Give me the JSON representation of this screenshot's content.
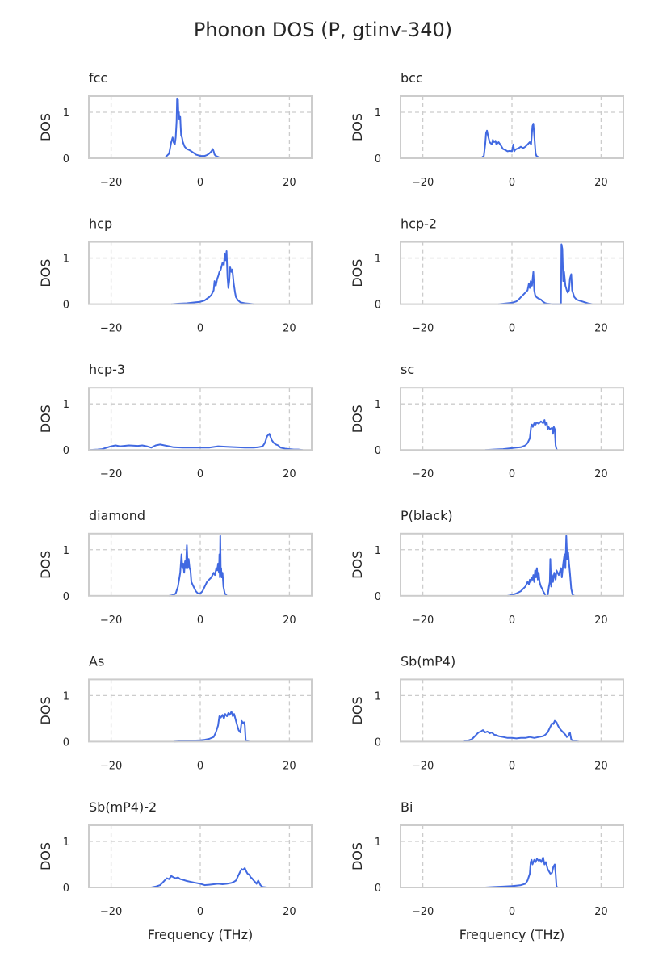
{
  "figure": {
    "title": "Phonon DOS (P, gtinv-340)",
    "xlabel": "Frequency (THz)",
    "ylabel": "DOS"
  },
  "colors": {
    "line": "#4169e1",
    "grid": "#cccccc",
    "frame": "#cccccc",
    "text": "#262626"
  },
  "chart_data": [
    {
      "type": "line",
      "title": "fcc",
      "xlim": [
        -25,
        25
      ],
      "ylim": [
        0,
        1.35
      ],
      "xticks": [
        -20,
        0,
        20
      ],
      "yticks": [
        0,
        1
      ],
      "grid": true,
      "x": [
        -8,
        -7.5,
        -7,
        -6.5,
        -6.2,
        -6,
        -5.7,
        -5.5,
        -5.3,
        -5.2,
        -5.1,
        -5,
        -4.9,
        -4.8,
        -4.7,
        -4.5,
        -4.4,
        -4.3,
        -4.1,
        -3.9,
        -3.5,
        -3,
        -2.5,
        -2,
        -1.5,
        -1,
        0,
        1,
        1.5,
        2,
        2.5,
        2.8,
        3,
        3.2,
        3.5,
        4,
        4.5,
        5
      ],
      "y": [
        0,
        0.05,
        0.1,
        0.35,
        0.45,
        0.35,
        0.3,
        0.45,
        0.8,
        1.3,
        1.25,
        1.28,
        0.95,
        1.0,
        0.85,
        0.9,
        0.7,
        0.5,
        0.45,
        0.35,
        0.25,
        0.2,
        0.18,
        0.15,
        0.12,
        0.08,
        0.05,
        0.05,
        0.07,
        0.1,
        0.15,
        0.2,
        0.15,
        0.08,
        0.05,
        0.03,
        0.01,
        0
      ]
    },
    {
      "type": "line",
      "title": "bcc",
      "xlim": [
        -25,
        25
      ],
      "ylim": [
        0,
        1.35
      ],
      "xticks": [
        -20,
        0,
        20
      ],
      "yticks": [
        0,
        1
      ],
      "grid": true,
      "x": [
        -7,
        -6.3,
        -6,
        -5.8,
        -5.6,
        -5.4,
        -5,
        -4.5,
        -4.3,
        -4,
        -3.7,
        -3.5,
        -3,
        -2.5,
        -2,
        -1.5,
        -1,
        -0.5,
        0,
        0.3,
        0.5,
        0.7,
        1,
        1.5,
        2,
        2.5,
        3,
        3.5,
        4,
        4.3,
        4.6,
        4.8,
        5,
        5.3,
        5.5,
        6,
        6.5,
        7
      ],
      "y": [
        0,
        0.05,
        0.3,
        0.55,
        0.6,
        0.5,
        0.35,
        0.3,
        0.4,
        0.35,
        0.38,
        0.3,
        0.35,
        0.28,
        0.2,
        0.18,
        0.15,
        0.16,
        0.15,
        0.3,
        0.15,
        0.18,
        0.2,
        0.22,
        0.25,
        0.22,
        0.25,
        0.3,
        0.35,
        0.3,
        0.7,
        0.75,
        0.5,
        0.1,
        0.05,
        0.02,
        0.01,
        0
      ]
    },
    {
      "type": "line",
      "title": "hcp",
      "xlim": [
        -25,
        25
      ],
      "ylim": [
        0,
        1.35
      ],
      "xticks": [
        -20,
        0,
        20
      ],
      "yticks": [
        0,
        1
      ],
      "grid": true,
      "x": [
        -6.5,
        -5,
        -3,
        -1,
        0,
        1,
        1.5,
        2,
        2.5,
        3,
        3.2,
        3.5,
        3.8,
        4,
        4.3,
        4.6,
        5,
        5.3,
        5.5,
        5.7,
        5.9,
        6.1,
        6.3,
        6.5,
        6.7,
        7,
        7.2,
        7.5,
        7.8,
        8,
        8.5,
        9,
        10,
        11,
        12
      ],
      "y": [
        0,
        0.01,
        0.02,
        0.04,
        0.05,
        0.08,
        0.12,
        0.15,
        0.2,
        0.3,
        0.5,
        0.4,
        0.55,
        0.6,
        0.7,
        0.75,
        0.9,
        0.85,
        1.1,
        0.95,
        1.15,
        0.6,
        0.35,
        0.5,
        0.8,
        0.7,
        0.75,
        0.45,
        0.25,
        0.15,
        0.08,
        0.04,
        0.02,
        0.01,
        0
      ]
    },
    {
      "type": "line",
      "title": "hcp-2",
      "xlim": [
        -25,
        25
      ],
      "ylim": [
        0,
        1.35
      ],
      "xticks": [
        -20,
        0,
        20
      ],
      "yticks": [
        0,
        1
      ],
      "grid": true,
      "x": [
        -3,
        -1,
        0,
        1,
        1.5,
        2,
        2.5,
        3,
        3.5,
        3.8,
        4,
        4.2,
        4.5,
        4.8,
        5,
        5.2,
        5.5,
        6,
        6.5,
        7,
        7.5,
        8,
        9,
        10,
        11,
        11.1,
        11.3,
        11.5,
        11.7,
        12,
        12.3,
        12.5,
        12.8,
        13,
        13.3,
        13.5,
        14,
        14.5,
        15,
        16,
        17,
        18
      ],
      "y": [
        0,
        0.02,
        0.03,
        0.06,
        0.1,
        0.15,
        0.2,
        0.25,
        0.3,
        0.45,
        0.35,
        0.5,
        0.4,
        0.7,
        0.3,
        0.2,
        0.15,
        0.12,
        0.1,
        0.05,
        0.02,
        0.01,
        0,
        0,
        0,
        1.3,
        1.2,
        0.5,
        0.7,
        0.4,
        0.3,
        0.25,
        0.3,
        0.55,
        0.65,
        0.3,
        0.15,
        0.1,
        0.08,
        0.05,
        0.02,
        0
      ]
    },
    {
      "type": "line",
      "title": "hcp-3",
      "xlim": [
        -25,
        25
      ],
      "ylim": [
        0,
        1.35
      ],
      "xticks": [
        -20,
        0,
        20
      ],
      "yticks": [
        0,
        1
      ],
      "grid": true,
      "x": [
        -25,
        -23,
        -22,
        -21,
        -20,
        -19,
        -18,
        -16,
        -14,
        -13,
        -12,
        -11,
        -10,
        -9,
        -8,
        -7,
        -6,
        -4,
        -2,
        0,
        2,
        4,
        6,
        8,
        10,
        12,
        13,
        14,
        14.5,
        15,
        15.5,
        16,
        16.5,
        17,
        17.5,
        18,
        19,
        20,
        21,
        22,
        23
      ],
      "y": [
        0,
        0.01,
        0.02,
        0.05,
        0.08,
        0.1,
        0.08,
        0.1,
        0.09,
        0.1,
        0.08,
        0.05,
        0.1,
        0.12,
        0.1,
        0.08,
        0.06,
        0.05,
        0.05,
        0.05,
        0.05,
        0.08,
        0.07,
        0.06,
        0.05,
        0.05,
        0.06,
        0.08,
        0.15,
        0.3,
        0.35,
        0.22,
        0.15,
        0.12,
        0.1,
        0.05,
        0.03,
        0.02,
        0.01,
        0.01,
        0
      ]
    },
    {
      "type": "line",
      "title": "sc",
      "xlim": [
        -25,
        25
      ],
      "ylim": [
        0,
        1.35
      ],
      "xticks": [
        -20,
        0,
        20
      ],
      "yticks": [
        0,
        1
      ],
      "grid": true,
      "x": [
        -6,
        -4,
        -2,
        0,
        1,
        2,
        3,
        3.5,
        4,
        4.3,
        4.5,
        4.7,
        5,
        5.3,
        5.5,
        6,
        6.5,
        7,
        7.3,
        7.5,
        7.8,
        8,
        8.2,
        8.5,
        9,
        9.2,
        9.4,
        9.6,
        9.8,
        10,
        10.2
      ],
      "y": [
        0,
        0.01,
        0.02,
        0.04,
        0.05,
        0.06,
        0.1,
        0.15,
        0.25,
        0.5,
        0.55,
        0.5,
        0.58,
        0.55,
        0.6,
        0.57,
        0.62,
        0.58,
        0.65,
        0.55,
        0.6,
        0.45,
        0.5,
        0.45,
        0.48,
        0.35,
        0.5,
        0.45,
        0.1,
        0.02,
        0
      ]
    },
    {
      "type": "line",
      "title": "diamond",
      "xlim": [
        -25,
        25
      ],
      "ylim": [
        0,
        1.35
      ],
      "xticks": [
        -20,
        0,
        20
      ],
      "yticks": [
        0,
        1
      ],
      "grid": true,
      "x": [
        -7,
        -6,
        -5.5,
        -5,
        -4.5,
        -4.2,
        -4,
        -3.8,
        -3.6,
        -3.4,
        -3.2,
        -3,
        -2.8,
        -2.6,
        -2.4,
        -2.2,
        -2,
        -1.5,
        -1,
        -0.5,
        0,
        0.5,
        1,
        1.5,
        2,
        2.5,
        3,
        3.3,
        3.6,
        3.8,
        4,
        4.2,
        4.3,
        4.4,
        4.5,
        4.6,
        4.7,
        4.8,
        5,
        5.2,
        5.5,
        6
      ],
      "y": [
        0,
        0.02,
        0.05,
        0.2,
        0.5,
        0.9,
        0.6,
        0.7,
        0.5,
        0.75,
        0.6,
        1.1,
        0.6,
        0.8,
        0.6,
        0.55,
        0.3,
        0.2,
        0.1,
        0.05,
        0.05,
        0.1,
        0.2,
        0.3,
        0.35,
        0.4,
        0.5,
        0.45,
        0.6,
        0.55,
        0.7,
        0.5,
        0.9,
        0.4,
        1.3,
        0.5,
        0.6,
        0.4,
        0.5,
        0.2,
        0.05,
        0
      ]
    },
    {
      "type": "line",
      "title": "P(black)",
      "xlim": [
        -25,
        25
      ],
      "ylim": [
        0,
        1.35
      ],
      "xticks": [
        -20,
        0,
        20
      ],
      "yticks": [
        0,
        1
      ],
      "grid": true,
      "x": [
        -1,
        0,
        1,
        2,
        2.5,
        3,
        3.5,
        3.8,
        4,
        4.2,
        4.4,
        4.6,
        4.8,
        5,
        5.2,
        5.4,
        5.6,
        5.8,
        6,
        6.2,
        6.5,
        6.8,
        7,
        7.3,
        7.5,
        8,
        8.3,
        8.5,
        8.6,
        8.8,
        9,
        9.2,
        9.5,
        9.8,
        10,
        10.5,
        11,
        11.2,
        11.5,
        11.8,
        12,
        12.2,
        12.4,
        12.6,
        12.8,
        13,
        13.3,
        13.6,
        14
      ],
      "y": [
        0,
        0.02,
        0.05,
        0.1,
        0.15,
        0.2,
        0.3,
        0.25,
        0.35,
        0.3,
        0.4,
        0.35,
        0.45,
        0.3,
        0.55,
        0.4,
        0.6,
        0.35,
        0.5,
        0.3,
        0.2,
        0.15,
        0.1,
        0.05,
        0,
        0,
        0.2,
        0.3,
        0.8,
        0.2,
        0.45,
        0.3,
        0.5,
        0.35,
        0.55,
        0.45,
        0.6,
        0.4,
        0.7,
        0.9,
        0.6,
        1.3,
        0.8,
        0.95,
        0.7,
        0.5,
        0.15,
        0.02,
        0
      ]
    },
    {
      "type": "line",
      "title": "As",
      "xlim": [
        -25,
        25
      ],
      "ylim": [
        0,
        1.35
      ],
      "xticks": [
        -20,
        0,
        20
      ],
      "yticks": [
        0,
        1
      ],
      "grid": true,
      "x": [
        -6,
        -4,
        -2,
        0,
        1,
        2,
        3,
        3.5,
        4,
        4.3,
        4.6,
        5,
        5.3,
        5.6,
        6,
        6.3,
        6.6,
        7,
        7.3,
        7.6,
        8,
        8.3,
        8.6,
        9,
        9.3,
        9.6,
        9.8,
        10,
        10.2,
        10.5,
        11
      ],
      "y": [
        0,
        0.01,
        0.02,
        0.03,
        0.04,
        0.06,
        0.1,
        0.2,
        0.35,
        0.55,
        0.52,
        0.58,
        0.5,
        0.6,
        0.55,
        0.62,
        0.58,
        0.65,
        0.55,
        0.6,
        0.45,
        0.35,
        0.25,
        0.2,
        0.45,
        0.4,
        0.42,
        0.35,
        0.02,
        0.01,
        0
      ]
    },
    {
      "type": "line",
      "title": "Sb(mP4)",
      "xlim": [
        -25,
        25
      ],
      "ylim": [
        0,
        1.35
      ],
      "xticks": [
        -20,
        0,
        20
      ],
      "yticks": [
        0,
        1
      ],
      "grid": true,
      "x": [
        -11,
        -10,
        -9,
        -8.5,
        -8,
        -7.5,
        -7,
        -6.5,
        -6,
        -5.5,
        -5,
        -4.5,
        -4,
        -3.5,
        -3,
        -2,
        -1,
        0,
        1,
        2,
        3,
        4,
        5,
        6,
        7,
        7.5,
        8,
        8.5,
        9,
        9.3,
        9.6,
        10,
        10.3,
        10.6,
        11,
        11.5,
        12,
        12.3,
        12.6,
        13,
        13.3,
        13.6,
        14,
        15
      ],
      "y": [
        0,
        0.02,
        0.05,
        0.1,
        0.15,
        0.2,
        0.22,
        0.25,
        0.2,
        0.22,
        0.18,
        0.2,
        0.15,
        0.14,
        0.12,
        0.1,
        0.08,
        0.08,
        0.07,
        0.08,
        0.08,
        0.1,
        0.08,
        0.1,
        0.12,
        0.15,
        0.2,
        0.3,
        0.4,
        0.38,
        0.45,
        0.42,
        0.35,
        0.3,
        0.25,
        0.2,
        0.15,
        0.1,
        0.12,
        0.2,
        0.05,
        0.02,
        0.01,
        0
      ]
    },
    {
      "type": "line",
      "title": "Sb(mP4)-2",
      "xlim": [
        -25,
        25
      ],
      "ylim": [
        0,
        1.35
      ],
      "xticks": [
        -20,
        0,
        20
      ],
      "yticks": [
        0,
        1
      ],
      "grid": true,
      "x": [
        -11,
        -10,
        -9,
        -8.5,
        -8,
        -7.5,
        -7,
        -6.5,
        -6,
        -5.5,
        -5,
        -4.5,
        -4,
        -3,
        -2,
        -1,
        0,
        1,
        2,
        3,
        4,
        5,
        6,
        7,
        7.5,
        8,
        8.5,
        9,
        9.3,
        9.6,
        10,
        10.3,
        10.6,
        11,
        11.3,
        11.6,
        12,
        12.3,
        12.6,
        13,
        13.5,
        14,
        15
      ],
      "y": [
        0,
        0.02,
        0.05,
        0.1,
        0.15,
        0.2,
        0.18,
        0.25,
        0.22,
        0.2,
        0.22,
        0.18,
        0.17,
        0.14,
        0.12,
        0.1,
        0.08,
        0.05,
        0.06,
        0.07,
        0.08,
        0.07,
        0.08,
        0.1,
        0.12,
        0.15,
        0.25,
        0.35,
        0.4,
        0.38,
        0.42,
        0.35,
        0.3,
        0.28,
        0.22,
        0.2,
        0.15,
        0.12,
        0.08,
        0.15,
        0.05,
        0.01,
        0
      ]
    },
    {
      "type": "line",
      "title": "Bi",
      "xlim": [
        -25,
        25
      ],
      "ylim": [
        0,
        1.35
      ],
      "xticks": [
        -20,
        0,
        20
      ],
      "yticks": [
        0,
        1
      ],
      "grid": true,
      "x": [
        -6,
        -4,
        -2,
        0,
        1,
        2,
        3,
        3.5,
        4,
        4.2,
        4.4,
        4.6,
        5,
        5.3,
        5.6,
        6,
        6.3,
        6.6,
        7,
        7.3,
        7.6,
        8,
        8.3,
        8.6,
        9,
        9.3,
        9.6,
        9.8,
        10,
        10.3
      ],
      "y": [
        0,
        0.01,
        0.02,
        0.03,
        0.04,
        0.05,
        0.08,
        0.15,
        0.3,
        0.55,
        0.6,
        0.5,
        0.6,
        0.55,
        0.62,
        0.58,
        0.6,
        0.55,
        0.65,
        0.5,
        0.55,
        0.4,
        0.35,
        0.3,
        0.32,
        0.45,
        0.5,
        0.3,
        0.02,
        0
      ]
    }
  ]
}
